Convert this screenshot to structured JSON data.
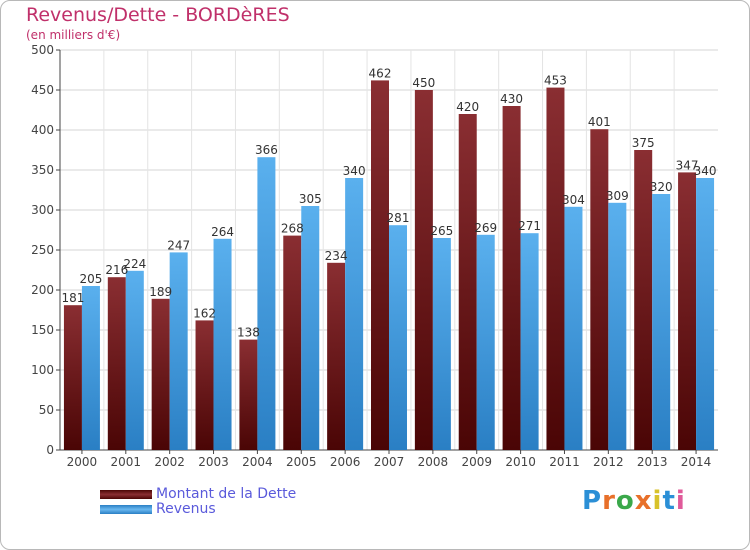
{
  "chart_data": {
    "type": "bar",
    "title": "Revenus/Dette - BORDèRES",
    "subtitle": "(en milliers d'€)",
    "categories": [
      "2000",
      "2001",
      "2002",
      "2003",
      "2004",
      "2005",
      "2006",
      "2007",
      "2008",
      "2009",
      "2010",
      "2011",
      "2012",
      "2013",
      "2014"
    ],
    "series": [
      {
        "name": "Montant de la Dette",
        "color": "#7a1e22",
        "values": [
          181,
          216,
          189,
          162,
          138,
          268,
          234,
          462,
          450,
          420,
          430,
          453,
          401,
          375,
          347
        ]
      },
      {
        "name": "Revenus",
        "color": "#3b9be0",
        "values": [
          205,
          224,
          247,
          264,
          366,
          305,
          340,
          281,
          265,
          269,
          271,
          304,
          309,
          320,
          340
        ]
      }
    ],
    "value_labels": [
      [
        "181",
        "216",
        "189",
        "162",
        "138",
        "268",
        "234",
        "462",
        "450",
        "420",
        "430",
        "453",
        "401",
        "375",
        "347"
      ],
      [
        "205",
        "224",
        "247",
        "264",
        "366",
        "305",
        "340",
        "281",
        "265",
        "269",
        "271",
        "304",
        "309",
        "320",
        "340"
      ]
    ],
    "ylim": [
      0,
      500
    ],
    "yticks": [
      "0",
      "50",
      "100",
      "150",
      "200",
      "250",
      "300",
      "350",
      "400",
      "450",
      "500"
    ],
    "grid": true,
    "legend_position": "bottom-left"
  },
  "logo": {
    "letters": [
      "P",
      "r",
      "o",
      "x",
      "i",
      "t",
      "i"
    ],
    "colors": [
      "#2b8fd6",
      "#e8702a",
      "#3aa84a",
      "#e8702a",
      "#d8c22a",
      "#2b8fd6",
      "#e05a9a"
    ]
  }
}
